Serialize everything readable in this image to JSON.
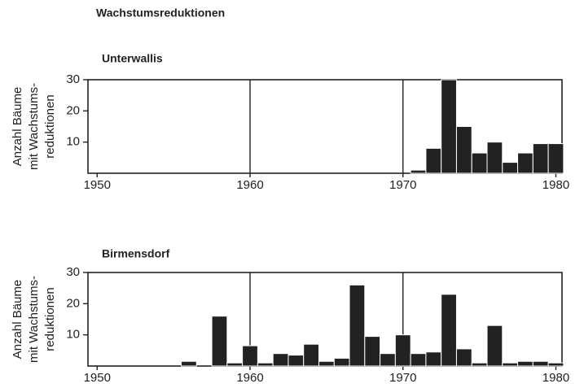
{
  "title": "Wachstumsreduktionen",
  "chart_data": [
    {
      "type": "bar",
      "title": "Unterwallis",
      "ylabel": [
        "Anzahl Bäume",
        "mit Wachstums-",
        "reduktionen"
      ],
      "x": [
        1971,
        1972,
        1973,
        1974,
        1975,
        1976,
        1977,
        1978,
        1979,
        1980
      ],
      "values": [
        1,
        8,
        30,
        15,
        6.5,
        10,
        3.5,
        6.5,
        9.5,
        9.5
      ],
      "color": "#222222",
      "xlim": [
        1949.4,
        1980.4
      ],
      "xticks": [
        1950,
        1960,
        1970,
        1980
      ],
      "ylim": [
        0,
        30
      ],
      "yticks": [
        10,
        20,
        30
      ],
      "grid": true
    },
    {
      "type": "bar",
      "title": "Birmensdorf",
      "ylabel": [
        "Anzahl Bäume",
        "mit Wachstums-",
        "reduktionen"
      ],
      "x": [
        1956,
        1958,
        1959,
        1960,
        1961,
        1962,
        1963,
        1964,
        1965,
        1966,
        1967,
        1968,
        1969,
        1970,
        1971,
        1972,
        1973,
        1974,
        1975,
        1976,
        1977,
        1978,
        1979,
        1980
      ],
      "values": [
        1.5,
        16,
        1,
        6.5,
        1,
        4,
        3.5,
        7,
        1.5,
        2.5,
        26,
        9.5,
        4,
        10,
        4,
        4.5,
        23,
        5.5,
        1,
        13,
        1,
        1.5,
        1.5,
        1
      ],
      "color": "#222222",
      "xlim": [
        1949.4,
        1980.4
      ],
      "xticks": [
        1950,
        1960,
        1970,
        1980
      ],
      "ylim": [
        0,
        30
      ],
      "yticks": [
        10,
        20,
        30
      ],
      "grid": true
    }
  ]
}
